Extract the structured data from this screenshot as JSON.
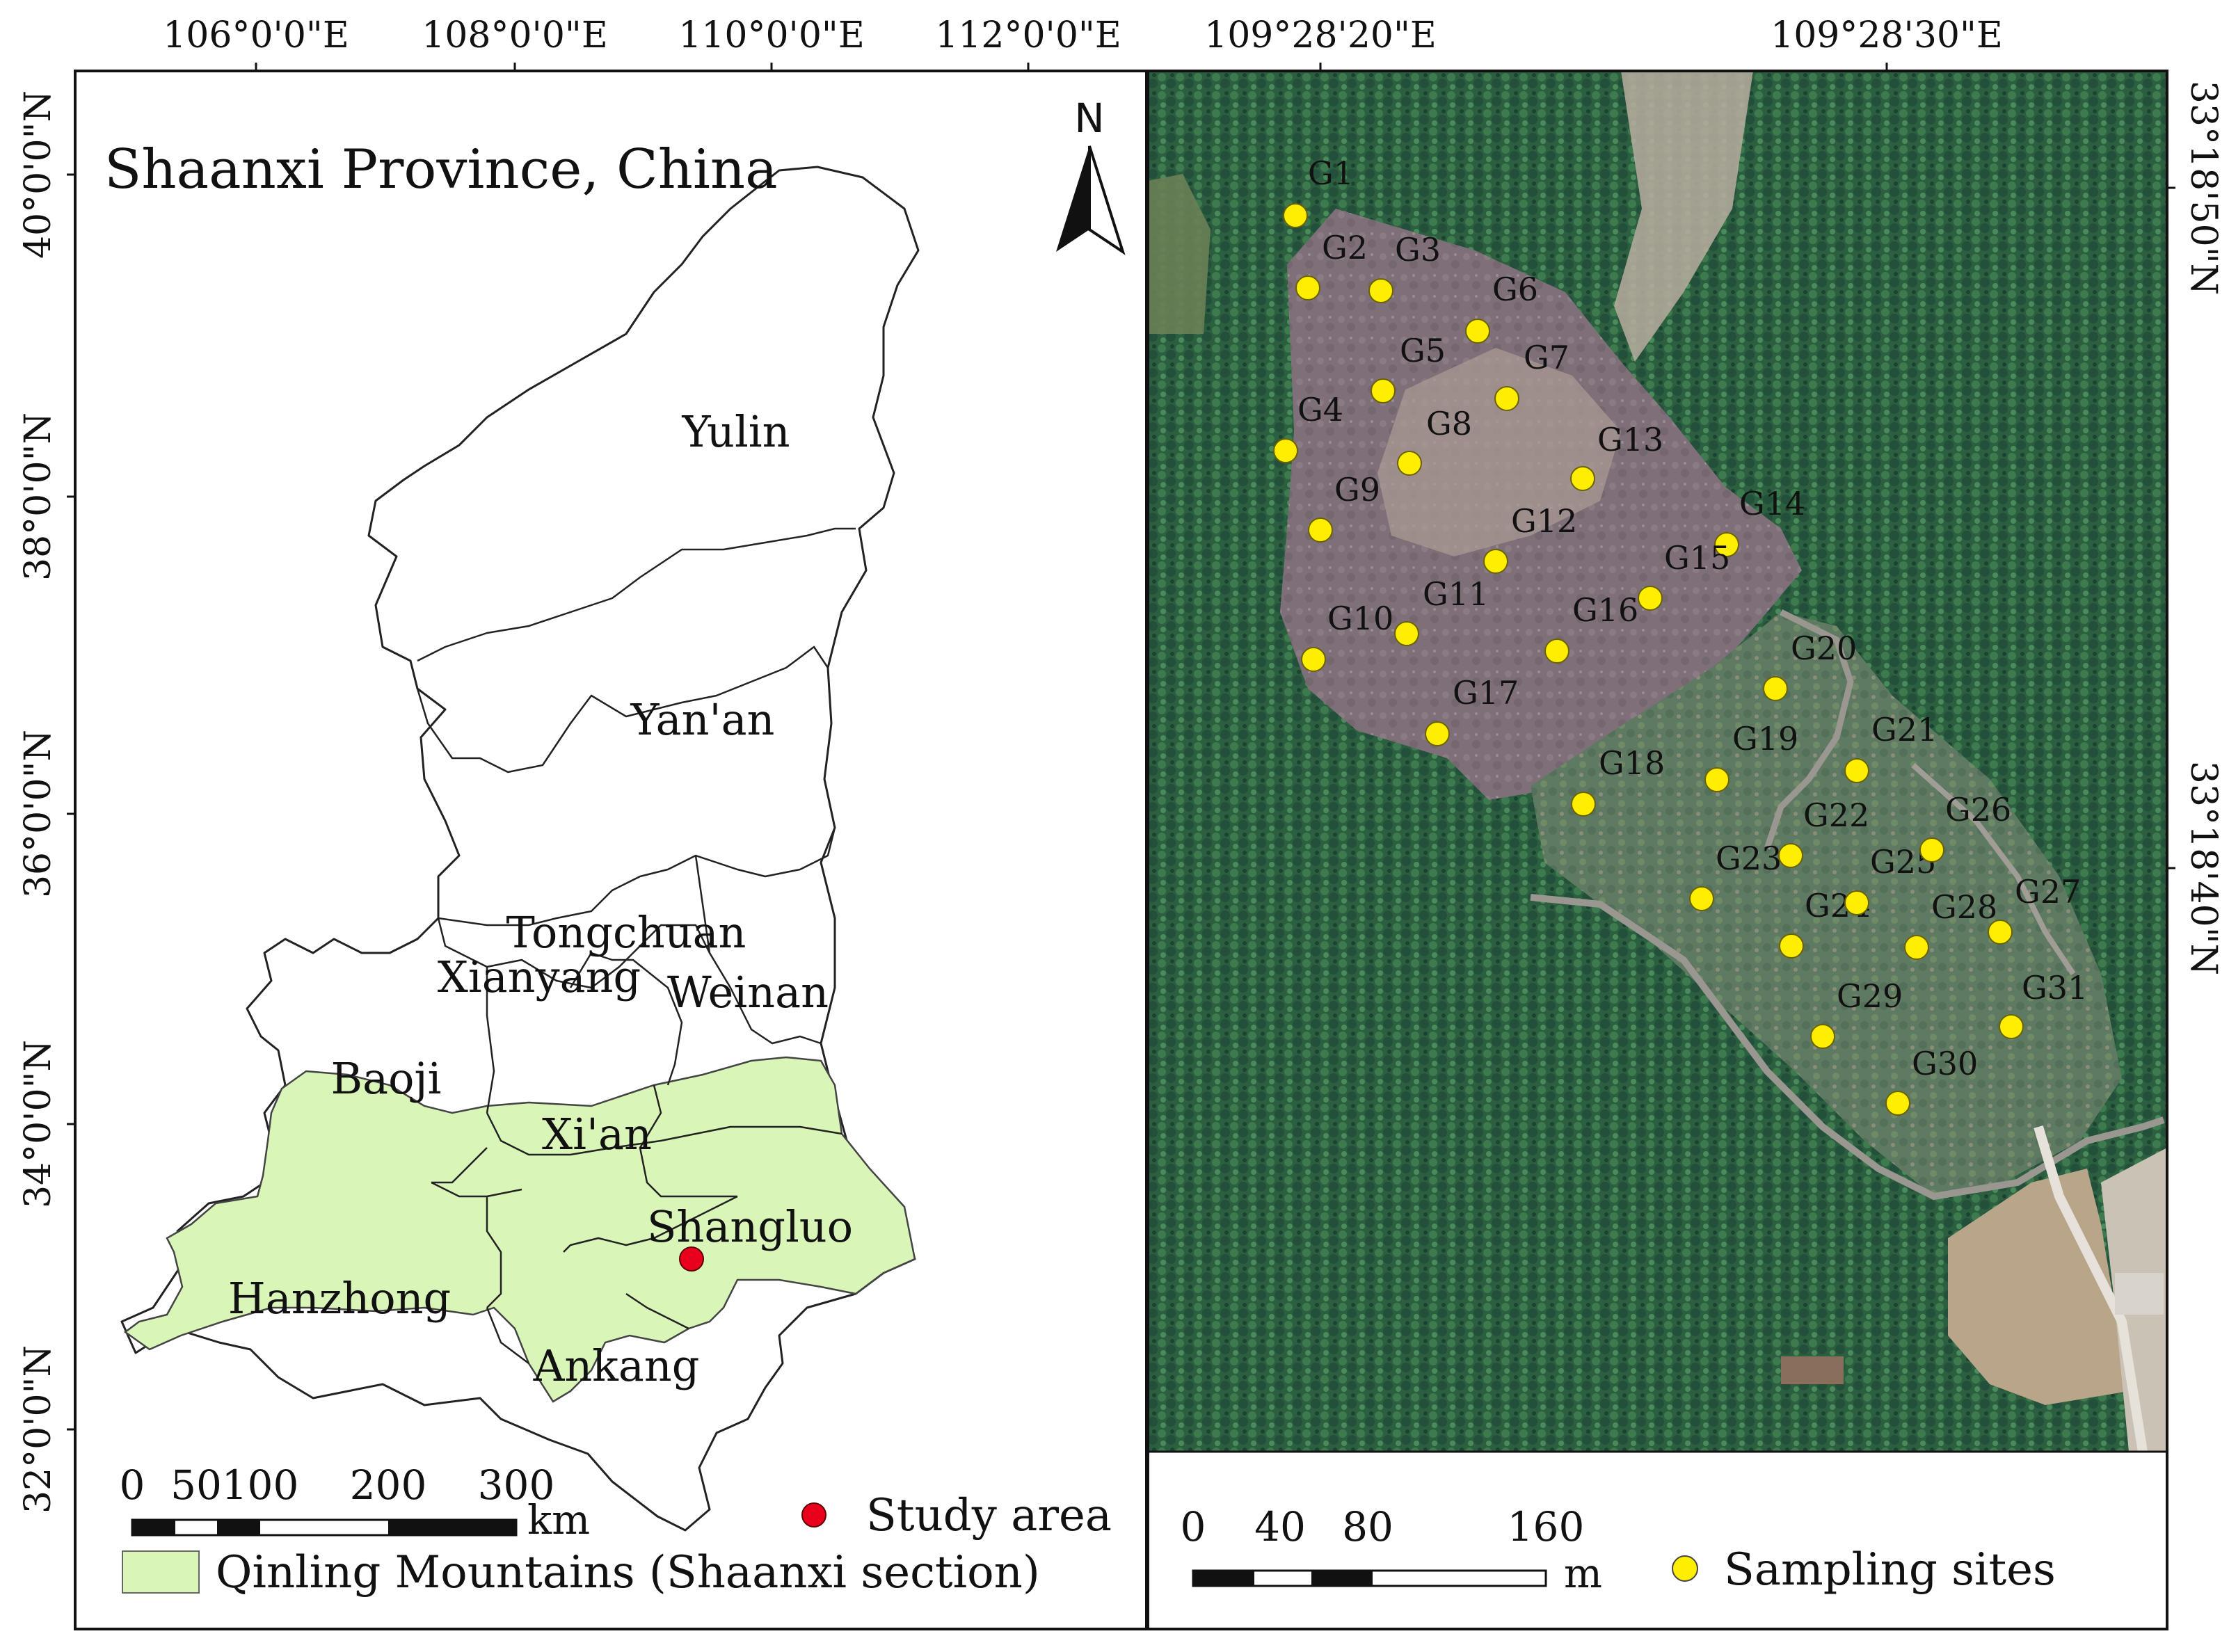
{
  "left_map": {
    "title": "Shaanxi Province, China",
    "north_label": "N",
    "top_lon_labels": [
      "106°0'0\"E",
      "108°0'0\"E",
      "110°0'0\"E",
      "112°0'0\"E"
    ],
    "left_lat_labels": [
      "40°0'0\"N",
      "38°0'0\"N",
      "36°0'0\"N",
      "34°0'0\"N",
      "32°0'0\"N"
    ],
    "cities": [
      "Yulin",
      "Yan'an",
      "Tongchuan",
      "Xianyang",
      "Weinan",
      "Baoji",
      "Xi'an",
      "Shangluo",
      "Hanzhong",
      "Ankang"
    ],
    "scale_bar": {
      "ticks": [
        "0",
        "50",
        "100",
        "200",
        "300"
      ],
      "unit": "km"
    },
    "legend": {
      "study_area_label": "Study area",
      "study_area_color": "#e8001c",
      "qinling_label": "Qinling Mountains (Shaanxi section)",
      "qinling_color": "#d9f5b8"
    }
  },
  "right_map": {
    "top_lon_labels": [
      "109°28'20\"E",
      "109°28'30\"E"
    ],
    "right_lat_labels": [
      "33°18'50\"N",
      "33°18'40\"N"
    ],
    "sites": [
      "G1",
      "G2",
      "G3",
      "G4",
      "G5",
      "G6",
      "G7",
      "G8",
      "G9",
      "G10",
      "G11",
      "G12",
      "G13",
      "G14",
      "G15",
      "G16",
      "G17",
      "G18",
      "G19",
      "G20",
      "G21",
      "G22",
      "G23",
      "G24",
      "G25",
      "G26",
      "G27",
      "G28",
      "G29",
      "G30",
      "G31"
    ],
    "site_color": "#ffee00",
    "scale_bar": {
      "ticks": [
        "0",
        "40",
        "80",
        "160"
      ],
      "unit": "m"
    },
    "legend": {
      "sampling_label": "Sampling sites"
    }
  }
}
